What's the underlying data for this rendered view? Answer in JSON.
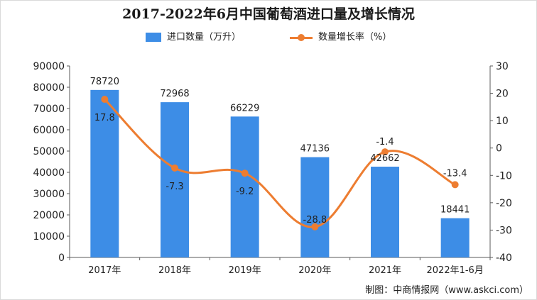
{
  "chart_data": {
    "type": "bar+line",
    "title": "2017-2022年6月中国葡萄酒进口量及增长情况",
    "categories": [
      "2017年",
      "2018年",
      "2019年",
      "2020年",
      "2021年",
      "2022年1-6月"
    ],
    "series": [
      {
        "name": "进口数量（万升）",
        "type": "bar",
        "axis": "left",
        "values": [
          78720,
          72968,
          66229,
          47136,
          42662,
          18441
        ]
      },
      {
        "name": "数量增长率（%）",
        "type": "line",
        "axis": "right",
        "values": [
          17.8,
          -7.3,
          -9.2,
          -28.8,
          -1.4,
          -13.4
        ]
      }
    ],
    "y_left": {
      "min": 0,
      "max": 90000,
      "ticks": [
        0,
        10000,
        20000,
        30000,
        40000,
        50000,
        60000,
        70000,
        80000,
        90000
      ]
    },
    "y_right": {
      "min": -40,
      "max": 30,
      "ticks": [
        -40,
        -30,
        -20,
        -10,
        0,
        10,
        20,
        30
      ]
    },
    "legend_position": "top-center",
    "grid": false
  },
  "colors": {
    "bar": "#3d8de6",
    "line": "#ed7d31",
    "axis": "#595959",
    "text": "#222222"
  },
  "footer": "制图：中商情报网（www.askci.com）"
}
